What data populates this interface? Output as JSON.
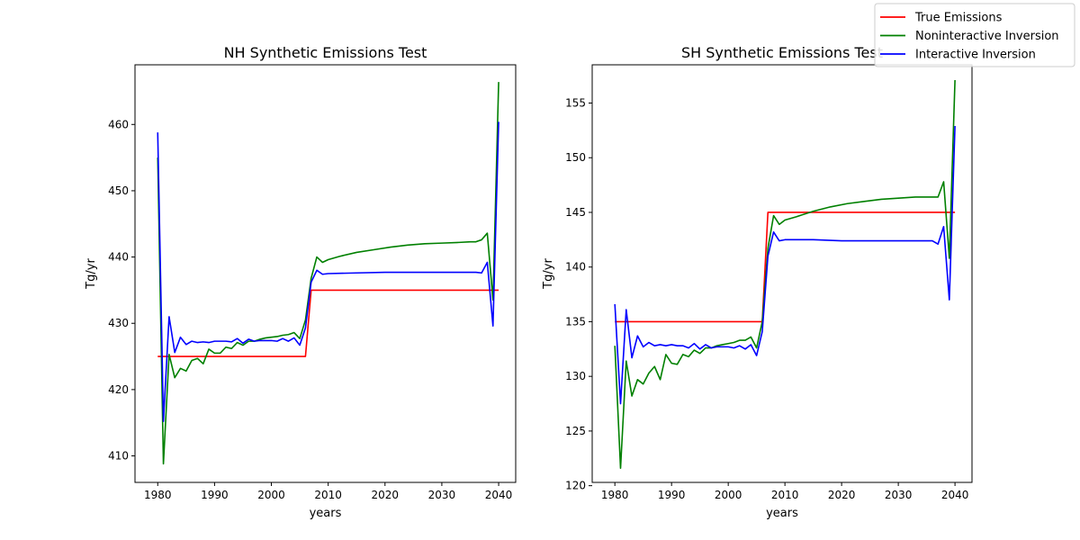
{
  "chart_data": [
    {
      "type": "line",
      "title": "NH Synthetic Emissions Test",
      "xlabel": "years",
      "ylabel": "Tg/yr",
      "xlim": [
        1976,
        2043
      ],
      "ylim": [
        406,
        469
      ],
      "xticks": [
        1980,
        1990,
        2000,
        2010,
        2020,
        2030,
        2040
      ],
      "yticks": [
        410,
        420,
        430,
        440,
        450,
        460
      ],
      "grid": false,
      "series": [
        {
          "name": "True Emissions",
          "color": "#ff0000",
          "points": [
            [
              1980,
              425
            ],
            [
              2006,
              425
            ],
            [
              2007,
              435
            ],
            [
              2040,
              435
            ]
          ]
        },
        {
          "name": "Noninteractive Inversion",
          "color": "#008000",
          "points": [
            [
              1980,
              455
            ],
            [
              1981,
              408.8
            ],
            [
              1982,
              425.3
            ],
            [
              1983,
              421.8
            ],
            [
              1984,
              423.2
            ],
            [
              1985,
              422.8
            ],
            [
              1986,
              424.4
            ],
            [
              1987,
              424.7
            ],
            [
              1988,
              423.9
            ],
            [
              1989,
              426.1
            ],
            [
              1990,
              425.5
            ],
            [
              1991,
              425.5
            ],
            [
              1992,
              426.4
            ],
            [
              1993,
              426.2
            ],
            [
              1994,
              427.1
            ],
            [
              1995,
              426.7
            ],
            [
              1996,
              427.3
            ],
            [
              1997,
              427.3
            ],
            [
              1998,
              427.6
            ],
            [
              1999,
              427.8
            ],
            [
              2000,
              427.9
            ],
            [
              2001,
              428.0
            ],
            [
              2002,
              428.2
            ],
            [
              2003,
              428.3
            ],
            [
              2004,
              428.6
            ],
            [
              2005,
              427.7
            ],
            [
              2006,
              430.5
            ],
            [
              2007,
              436.8
            ],
            [
              2008,
              440.0
            ],
            [
              2009,
              439.2
            ],
            [
              2010,
              439.6
            ],
            [
              2012,
              440.1
            ],
            [
              2015,
              440.7
            ],
            [
              2018,
              441.1
            ],
            [
              2021,
              441.5
            ],
            [
              2024,
              441.8
            ],
            [
              2027,
              442.0
            ],
            [
              2030,
              442.1
            ],
            [
              2033,
              442.2
            ],
            [
              2035,
              442.3
            ],
            [
              2036,
              442.3
            ],
            [
              2037,
              442.6
            ],
            [
              2038,
              443.6
            ],
            [
              2039,
              433.5
            ],
            [
              2040,
              466.4
            ]
          ]
        },
        {
          "name": "Interactive Inversion",
          "color": "#0000ff",
          "points": [
            [
              1980,
              458.8
            ],
            [
              1981,
              415.2
            ],
            [
              1982,
              431.0
            ],
            [
              1983,
              425.6
            ],
            [
              1984,
              427.9
            ],
            [
              1985,
              426.8
            ],
            [
              1986,
              427.3
            ],
            [
              1987,
              427.1
            ],
            [
              1988,
              427.2
            ],
            [
              1989,
              427.1
            ],
            [
              1990,
              427.3
            ],
            [
              1991,
              427.3
            ],
            [
              1992,
              427.3
            ],
            [
              1993,
              427.2
            ],
            [
              1994,
              427.7
            ],
            [
              1995,
              427.0
            ],
            [
              1996,
              427.6
            ],
            [
              1997,
              427.3
            ],
            [
              1998,
              427.4
            ],
            [
              1999,
              427.4
            ],
            [
              2000,
              427.4
            ],
            [
              2001,
              427.3
            ],
            [
              2002,
              427.7
            ],
            [
              2003,
              427.3
            ],
            [
              2004,
              427.8
            ],
            [
              2005,
              426.7
            ],
            [
              2006,
              429.3
            ],
            [
              2007,
              436.2
            ],
            [
              2008,
              438.0
            ],
            [
              2009,
              437.4
            ],
            [
              2010,
              437.5
            ],
            [
              2015,
              437.6
            ],
            [
              2020,
              437.7
            ],
            [
              2025,
              437.7
            ],
            [
              2030,
              437.7
            ],
            [
              2035,
              437.7
            ],
            [
              2036,
              437.7
            ],
            [
              2037,
              437.6
            ],
            [
              2038,
              439.2
            ],
            [
              2039,
              429.6
            ],
            [
              2040,
              460.4
            ]
          ]
        }
      ]
    },
    {
      "type": "line",
      "title": "SH Synthetic Emissions Test",
      "xlabel": "years",
      "ylabel": "Tg/yr",
      "xlim": [
        1976,
        2043
      ],
      "ylim": [
        120.3,
        158.5
      ],
      "xticks": [
        1980,
        1990,
        2000,
        2010,
        2020,
        2030,
        2040
      ],
      "yticks": [
        120,
        125,
        130,
        135,
        140,
        145,
        150,
        155
      ],
      "grid": false,
      "series": [
        {
          "name": "True Emissions",
          "color": "#ff0000",
          "points": [
            [
              1980,
              135
            ],
            [
              2006,
              135
            ],
            [
              2007,
              145
            ],
            [
              2040,
              145
            ]
          ]
        },
        {
          "name": "Noninteractive Inversion",
          "color": "#008000",
          "points": [
            [
              1980,
              132.8
            ],
            [
              1981,
              121.6
            ],
            [
              1982,
              131.4
            ],
            [
              1983,
              128.2
            ],
            [
              1984,
              129.7
            ],
            [
              1985,
              129.3
            ],
            [
              1986,
              130.3
            ],
            [
              1987,
              130.9
            ],
            [
              1988,
              129.7
            ],
            [
              1989,
              132.0
            ],
            [
              1990,
              131.2
            ],
            [
              1991,
              131.1
            ],
            [
              1992,
              132.0
            ],
            [
              1993,
              131.8
            ],
            [
              1994,
              132.4
            ],
            [
              1995,
              132.1
            ],
            [
              1996,
              132.6
            ],
            [
              1997,
              132.6
            ],
            [
              1998,
              132.8
            ],
            [
              1999,
              132.9
            ],
            [
              2000,
              133.0
            ],
            [
              2001,
              133.1
            ],
            [
              2002,
              133.3
            ],
            [
              2003,
              133.3
            ],
            [
              2004,
              133.6
            ],
            [
              2005,
              132.6
            ],
            [
              2006,
              135.0
            ],
            [
              2007,
              141.7
            ],
            [
              2008,
              144.7
            ],
            [
              2009,
              143.9
            ],
            [
              2010,
              144.3
            ],
            [
              2012,
              144.6
            ],
            [
              2015,
              145.1
            ],
            [
              2018,
              145.5
            ],
            [
              2021,
              145.8
            ],
            [
              2024,
              146.0
            ],
            [
              2027,
              146.2
            ],
            [
              2030,
              146.3
            ],
            [
              2033,
              146.4
            ],
            [
              2035,
              146.4
            ],
            [
              2036,
              146.4
            ],
            [
              2037,
              146.4
            ],
            [
              2038,
              147.8
            ],
            [
              2039,
              140.8
            ],
            [
              2040,
              157.1
            ]
          ]
        },
        {
          "name": "Interactive Inversion",
          "color": "#0000ff",
          "points": [
            [
              1980,
              136.6
            ],
            [
              1981,
              127.5
            ],
            [
              1982,
              136.1
            ],
            [
              1983,
              131.7
            ],
            [
              1984,
              133.7
            ],
            [
              1985,
              132.7
            ],
            [
              1986,
              133.1
            ],
            [
              1987,
              132.8
            ],
            [
              1988,
              132.9
            ],
            [
              1989,
              132.8
            ],
            [
              1990,
              132.9
            ],
            [
              1991,
              132.8
            ],
            [
              1992,
              132.8
            ],
            [
              1993,
              132.6
            ],
            [
              1994,
              133.0
            ],
            [
              1995,
              132.5
            ],
            [
              1996,
              132.9
            ],
            [
              1997,
              132.6
            ],
            [
              1998,
              132.7
            ],
            [
              1999,
              132.7
            ],
            [
              2000,
              132.7
            ],
            [
              2001,
              132.6
            ],
            [
              2002,
              132.8
            ],
            [
              2003,
              132.5
            ],
            [
              2004,
              132.9
            ],
            [
              2005,
              131.9
            ],
            [
              2006,
              134.1
            ],
            [
              2007,
              141.0
            ],
            [
              2008,
              143.2
            ],
            [
              2009,
              142.4
            ],
            [
              2010,
              142.5
            ],
            [
              2015,
              142.5
            ],
            [
              2020,
              142.4
            ],
            [
              2025,
              142.4
            ],
            [
              2030,
              142.4
            ],
            [
              2035,
              142.4
            ],
            [
              2036,
              142.4
            ],
            [
              2037,
              142.1
            ],
            [
              2038,
              143.7
            ],
            [
              2039,
              137.0
            ],
            [
              2040,
              152.9
            ]
          ]
        }
      ]
    }
  ],
  "legend": {
    "position": "top-right",
    "entries": [
      {
        "label": "True Emissions",
        "color": "#ff0000"
      },
      {
        "label": "Noninteractive Inversion",
        "color": "#008000"
      },
      {
        "label": "Interactive Inversion",
        "color": "#0000ff"
      }
    ]
  }
}
